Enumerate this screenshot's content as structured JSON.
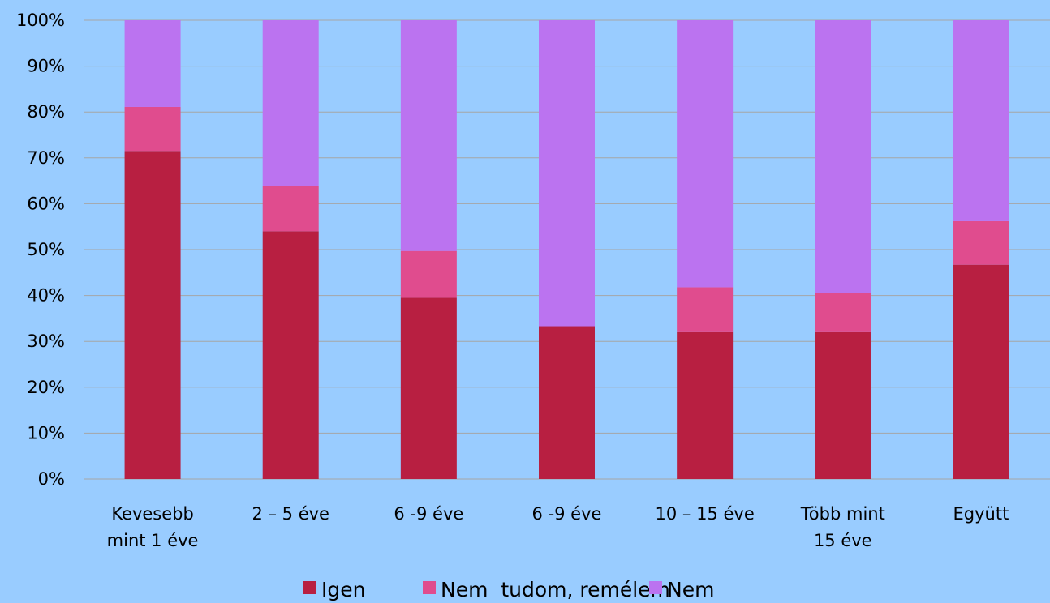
{
  "chart_data": {
    "type": "bar",
    "stacked": true,
    "normalized": true,
    "categories": [
      [
        "Kevesebb",
        "mint 1 éve"
      ],
      [
        "2 – 5 éve"
      ],
      [
        "6 -9 éve"
      ],
      [
        "6 -9 éve"
      ],
      [
        "10 – 15 éve"
      ],
      [
        "Több mint",
        "15 éve"
      ],
      [
        "Együtt"
      ]
    ],
    "series": [
      {
        "name": "Igen",
        "color": "#b81f41",
        "values": [
          71.5,
          54,
          39.5,
          33.3,
          32,
          32,
          46.7
        ]
      },
      {
        "name": "Nem  tudom, remélem",
        "color": "#e04c8e",
        "values": [
          9.6,
          9.8,
          10.2,
          0,
          9.8,
          8.6,
          9.5
        ]
      },
      {
        "name": "Nem",
        "color": "#bb73f0",
        "values": [
          18.9,
          36.2,
          50.3,
          66.7,
          58.2,
          59.4,
          43.8
        ]
      }
    ],
    "ylim": [
      0,
      100
    ],
    "yticks": [
      "0%",
      "10%",
      "20%",
      "30%",
      "40%",
      "50%",
      "60%",
      "70%",
      "80%",
      "90%",
      "100%"
    ],
    "grid": true,
    "legend_position": "bottom",
    "gridline_color": "#a6a6a6"
  }
}
